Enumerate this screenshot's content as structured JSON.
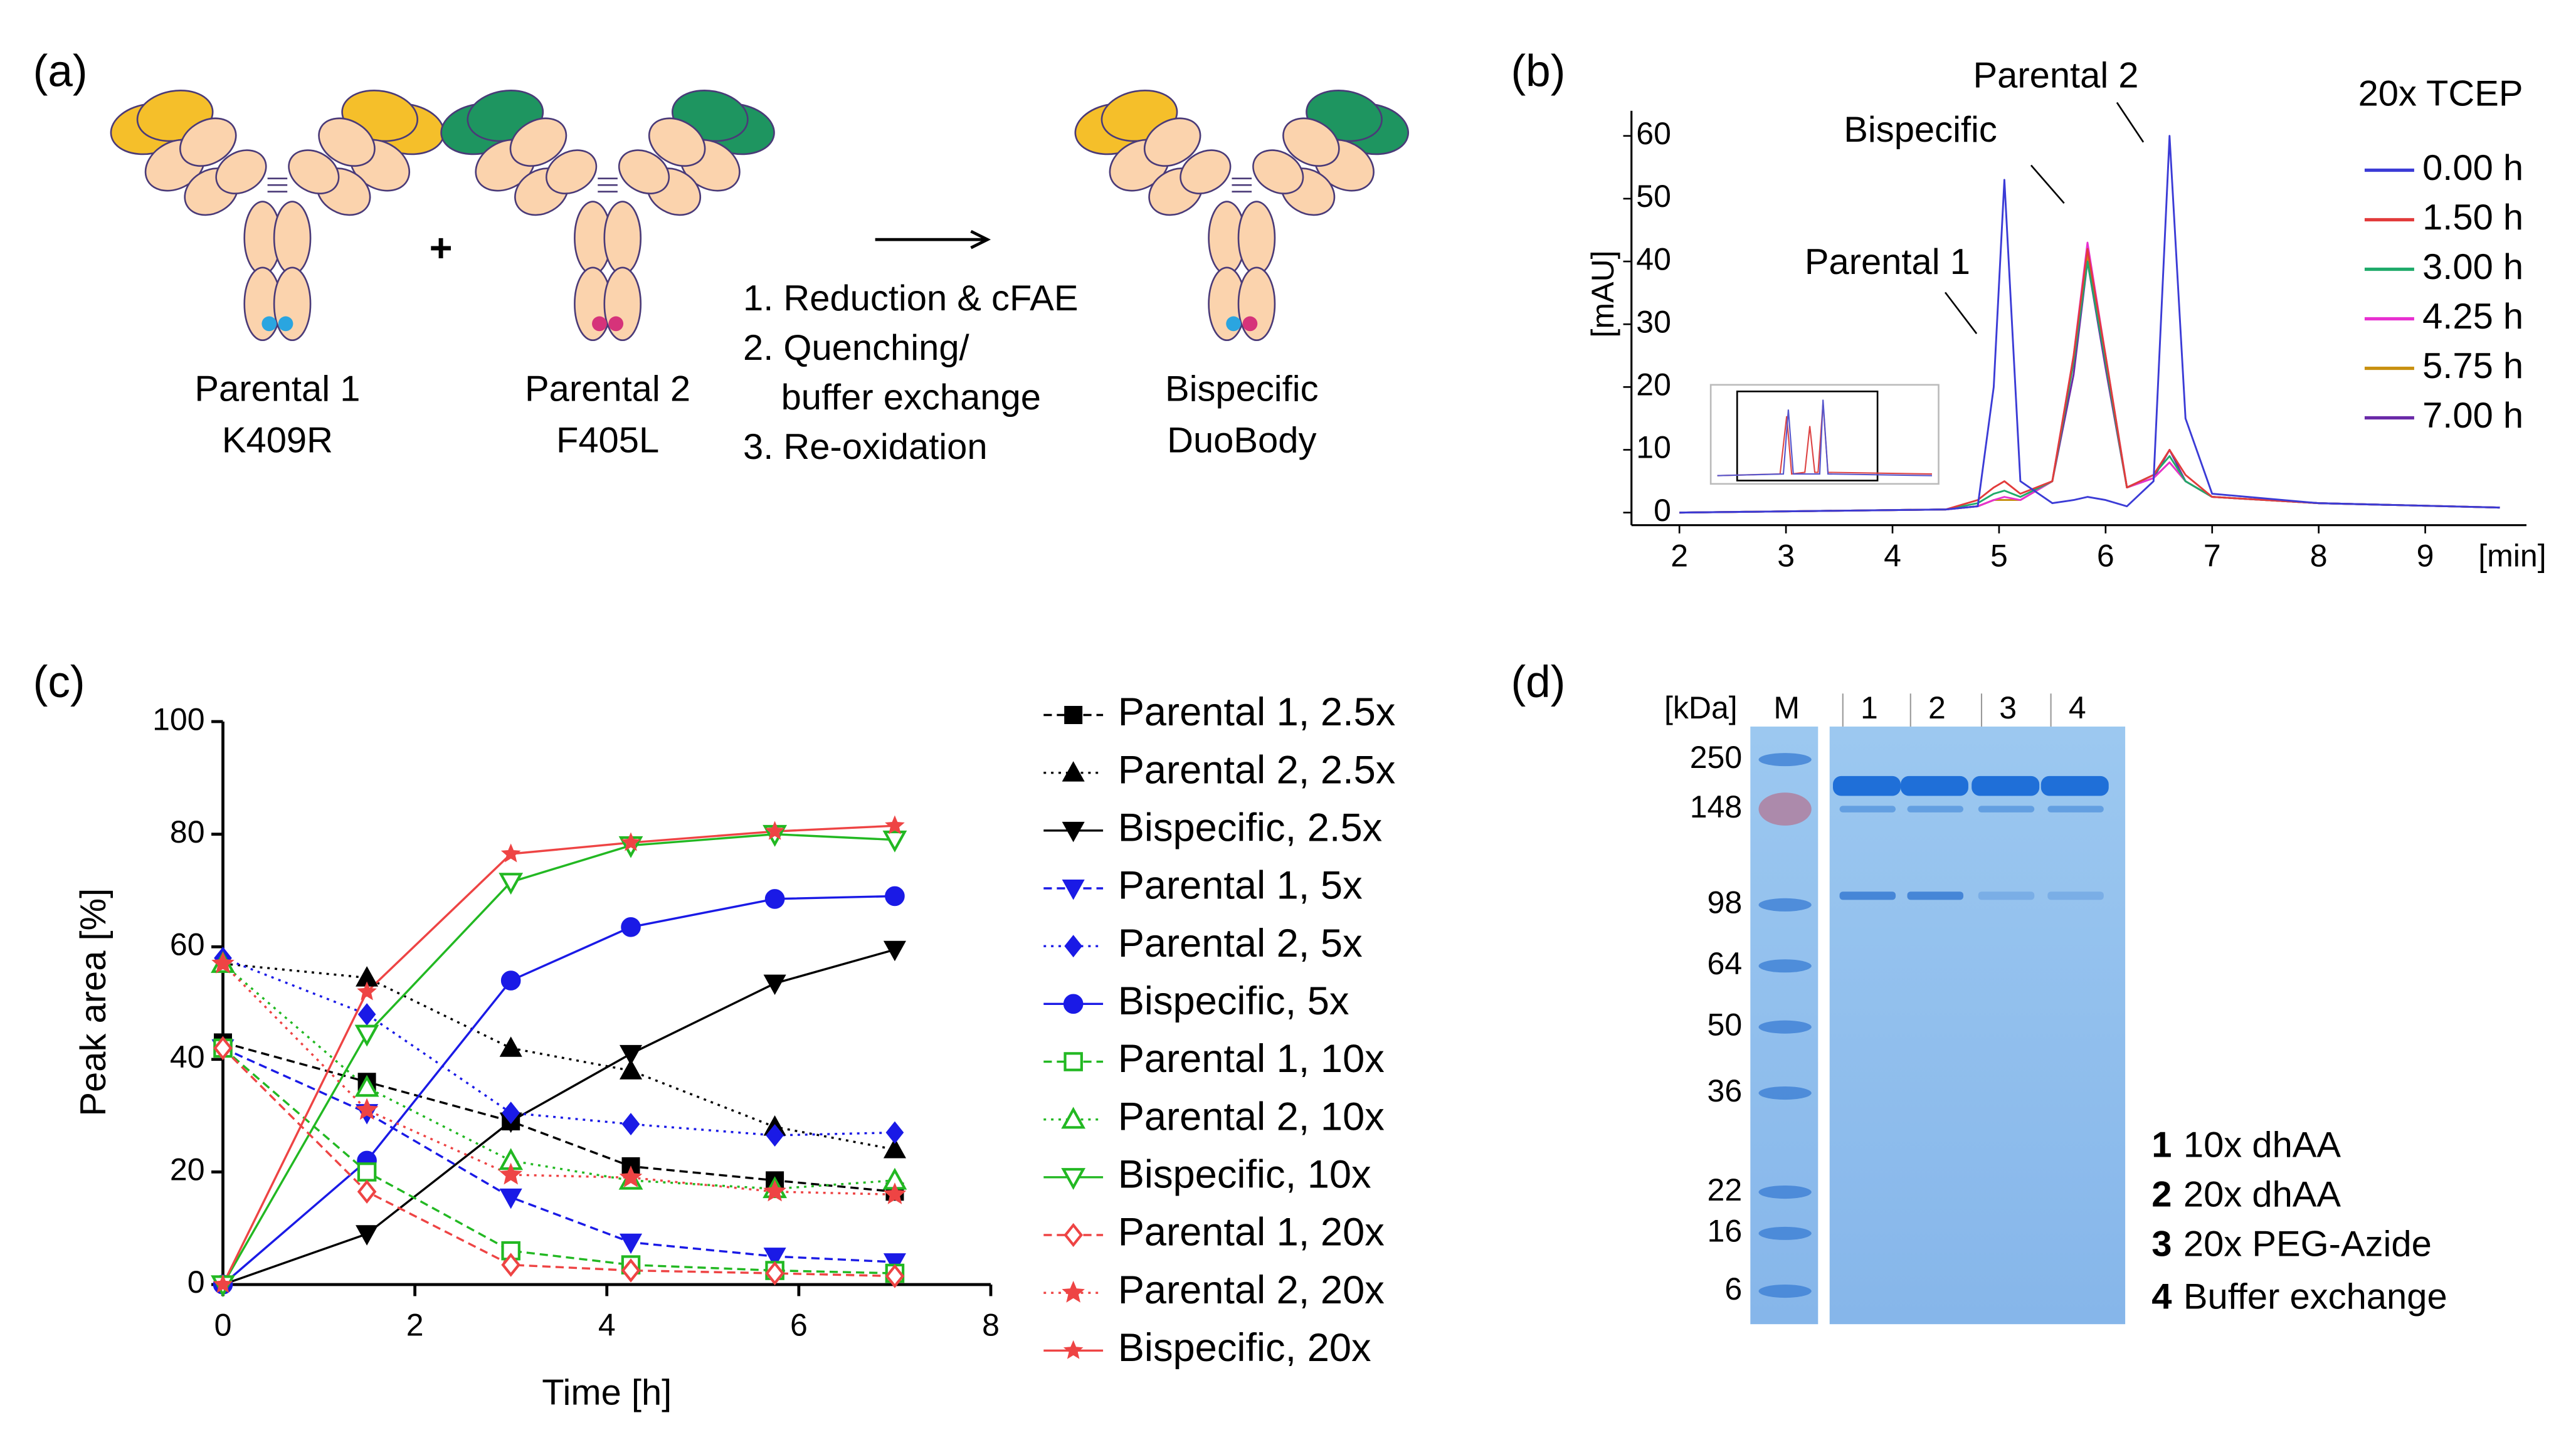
{
  "panel_labels": [
    "(a)",
    "(b)",
    "(c)",
    "(d)"
  ],
  "a": {
    "parental1": {
      "name": "Parental 1",
      "mutation": "K409R"
    },
    "plus": "+",
    "parental2": {
      "name": "Parental 2",
      "mutation": "F405L"
    },
    "steps": [
      "1. Reduction & cFAE",
      "2. Quenching/",
      "buffer exchange",
      "3. Re-oxidation"
    ],
    "product": {
      "name": "Bispecific",
      "format": "DuoBody"
    }
  },
  "chart_data": [
    {
      "type": "line",
      "xlabel": "[min]",
      "ylabel": "[mAU]",
      "legend_title": "20x TCEP",
      "annotations": [
        "Parental 2",
        "Bispecific",
        "Parental 1"
      ],
      "xlim": [
        1.55,
        9.95
      ],
      "ylim": [
        -2,
        64
      ],
      "xticks": [
        2,
        3,
        4,
        5,
        6,
        7,
        8,
        9
      ],
      "yticks": [
        0,
        10,
        20,
        30,
        40,
        50,
        60
      ],
      "x": [
        2,
        4.5,
        4.8,
        4.95,
        5.05,
        5.2,
        5.5,
        5.7,
        5.83,
        6.0,
        6.2,
        6.45,
        6.6,
        6.75,
        7.0,
        8,
        9.7
      ],
      "series": [
        {
          "name": "0.00 h",
          "color": "#3b3bd6",
          "values": [
            0,
            0.5,
            1,
            20,
            53,
            5,
            1.5,
            2,
            2.5,
            2,
            1,
            5,
            60,
            15,
            3,
            1.5,
            0.8
          ]
        },
        {
          "name": "1.50 h",
          "color": "#e23b3b",
          "values": [
            0,
            0.5,
            2,
            4,
            5,
            3,
            5,
            25,
            42,
            25,
            4,
            6,
            10,
            6,
            2.5,
            1.5,
            0.8
          ]
        },
        {
          "name": "3.00 h",
          "color": "#1faa6a",
          "values": [
            0,
            0.5,
            1.5,
            3,
            3.5,
            2.5,
            5,
            24,
            40,
            24,
            4,
            6,
            9,
            5,
            2.5,
            1.5,
            0.8
          ]
        },
        {
          "name": "4.25 h",
          "color": "#e830d0",
          "values": [
            0,
            0.5,
            1,
            2,
            2.5,
            2,
            5,
            25,
            43,
            25,
            4,
            5.5,
            8,
            5,
            2.5,
            1.5,
            0.8
          ]
        },
        {
          "name": "5.75 h",
          "color": "#c89010",
          "values": [
            0,
            0.5,
            1,
            2,
            2,
            2,
            5,
            24,
            41,
            24,
            4,
            5.5,
            8,
            5,
            2.5,
            1.5,
            0.8
          ]
        },
        {
          "name": "7.00 h",
          "color": "#6a2aa8",
          "values": [
            0,
            0.5,
            1,
            2,
            2,
            2,
            5,
            22,
            40,
            23,
            4,
            5.5,
            10,
            5,
            2.5,
            1.5,
            0.8
          ]
        }
      ]
    },
    {
      "type": "line",
      "xlabel": "Time [h]",
      "ylabel": "Peak area [%]",
      "xlim": [
        0,
        8
      ],
      "ylim": [
        0,
        100
      ],
      "xticks": [
        0,
        2,
        4,
        6,
        8
      ],
      "yticks": [
        0,
        20,
        40,
        60,
        80,
        100
      ],
      "x": [
        0,
        1.5,
        3,
        4.25,
        5.75,
        7
      ],
      "series": [
        {
          "name": "Parental 1, 2.5x",
          "color": "#000000",
          "marker": "square",
          "dash": "dashed",
          "values": [
            43,
            36,
            29,
            21,
            18.5,
            16.5
          ]
        },
        {
          "name": "Parental 2, 2.5x",
          "color": "#000000",
          "marker": "triangle",
          "dash": "dotted",
          "values": [
            57,
            54.5,
            42,
            38,
            28,
            24
          ]
        },
        {
          "name": "Bispecific, 2.5x",
          "color": "#000000",
          "marker": "triangle-down",
          "dash": "solid",
          "values": [
            0,
            9,
            29,
            41,
            53.5,
            59.5
          ]
        },
        {
          "name": "Parental 1, 5x",
          "color": "#1a1ae6",
          "marker": "triangle-down",
          "dash": "dashed",
          "values": [
            42,
            30.5,
            15.5,
            7.5,
            5,
            4
          ]
        },
        {
          "name": "Parental 2, 5x",
          "color": "#1a1ae6",
          "marker": "diamond",
          "dash": "dotted",
          "values": [
            58,
            48,
            30.5,
            28.5,
            26.5,
            27
          ]
        },
        {
          "name": "Bispecific, 5x",
          "color": "#1a1ae6",
          "marker": "circle",
          "dash": "solid",
          "values": [
            0,
            22,
            54,
            63.5,
            68.5,
            69
          ]
        },
        {
          "name": "Parental 1, 10x",
          "color": "#22b822",
          "marker": "square-open",
          "dash": "dashed",
          "values": [
            42,
            20,
            6,
            3.5,
            2.5,
            2
          ]
        },
        {
          "name": "Parental 2, 10x",
          "color": "#22b822",
          "marker": "triangle-open",
          "dash": "dotted",
          "values": [
            57,
            35,
            22,
            18.5,
            17,
            18.5
          ]
        },
        {
          "name": "Bispecific, 10x",
          "color": "#22b822",
          "marker": "triangle-down-open",
          "dash": "solid",
          "values": [
            0,
            44.5,
            71.5,
            78,
            80,
            79
          ]
        },
        {
          "name": "Parental 1, 20x",
          "color": "#ee4444",
          "marker": "diamond-open",
          "dash": "dashed",
          "values": [
            42,
            16.5,
            3.5,
            2.5,
            2,
            1.5
          ]
        },
        {
          "name": "Parental 2, 20x",
          "color": "#ee4444",
          "marker": "star",
          "dash": "dotted",
          "values": [
            57,
            31,
            19.5,
            19,
            16.5,
            16
          ]
        },
        {
          "name": "Bispecific, 20x",
          "color": "#ee4444",
          "marker": "star-small",
          "dash": "solid",
          "values": [
            0,
            52,
            76.5,
            78.5,
            80.5,
            81.5
          ]
        }
      ]
    }
  ],
  "d": {
    "unit": "[kDa]",
    "lanes": [
      "M",
      "1",
      "2",
      "3",
      "4"
    ],
    "markers": [
      "250",
      "148",
      "98",
      "64",
      "50",
      "36",
      "22",
      "16",
      "6"
    ],
    "key": [
      {
        "num": "1",
        "text": "10x dhAA"
      },
      {
        "num": "2",
        "text": "20x dhAA"
      },
      {
        "num": "3",
        "text": "20x PEG-Azide"
      },
      {
        "num": "4",
        "text": "Buffer exchange"
      }
    ]
  }
}
